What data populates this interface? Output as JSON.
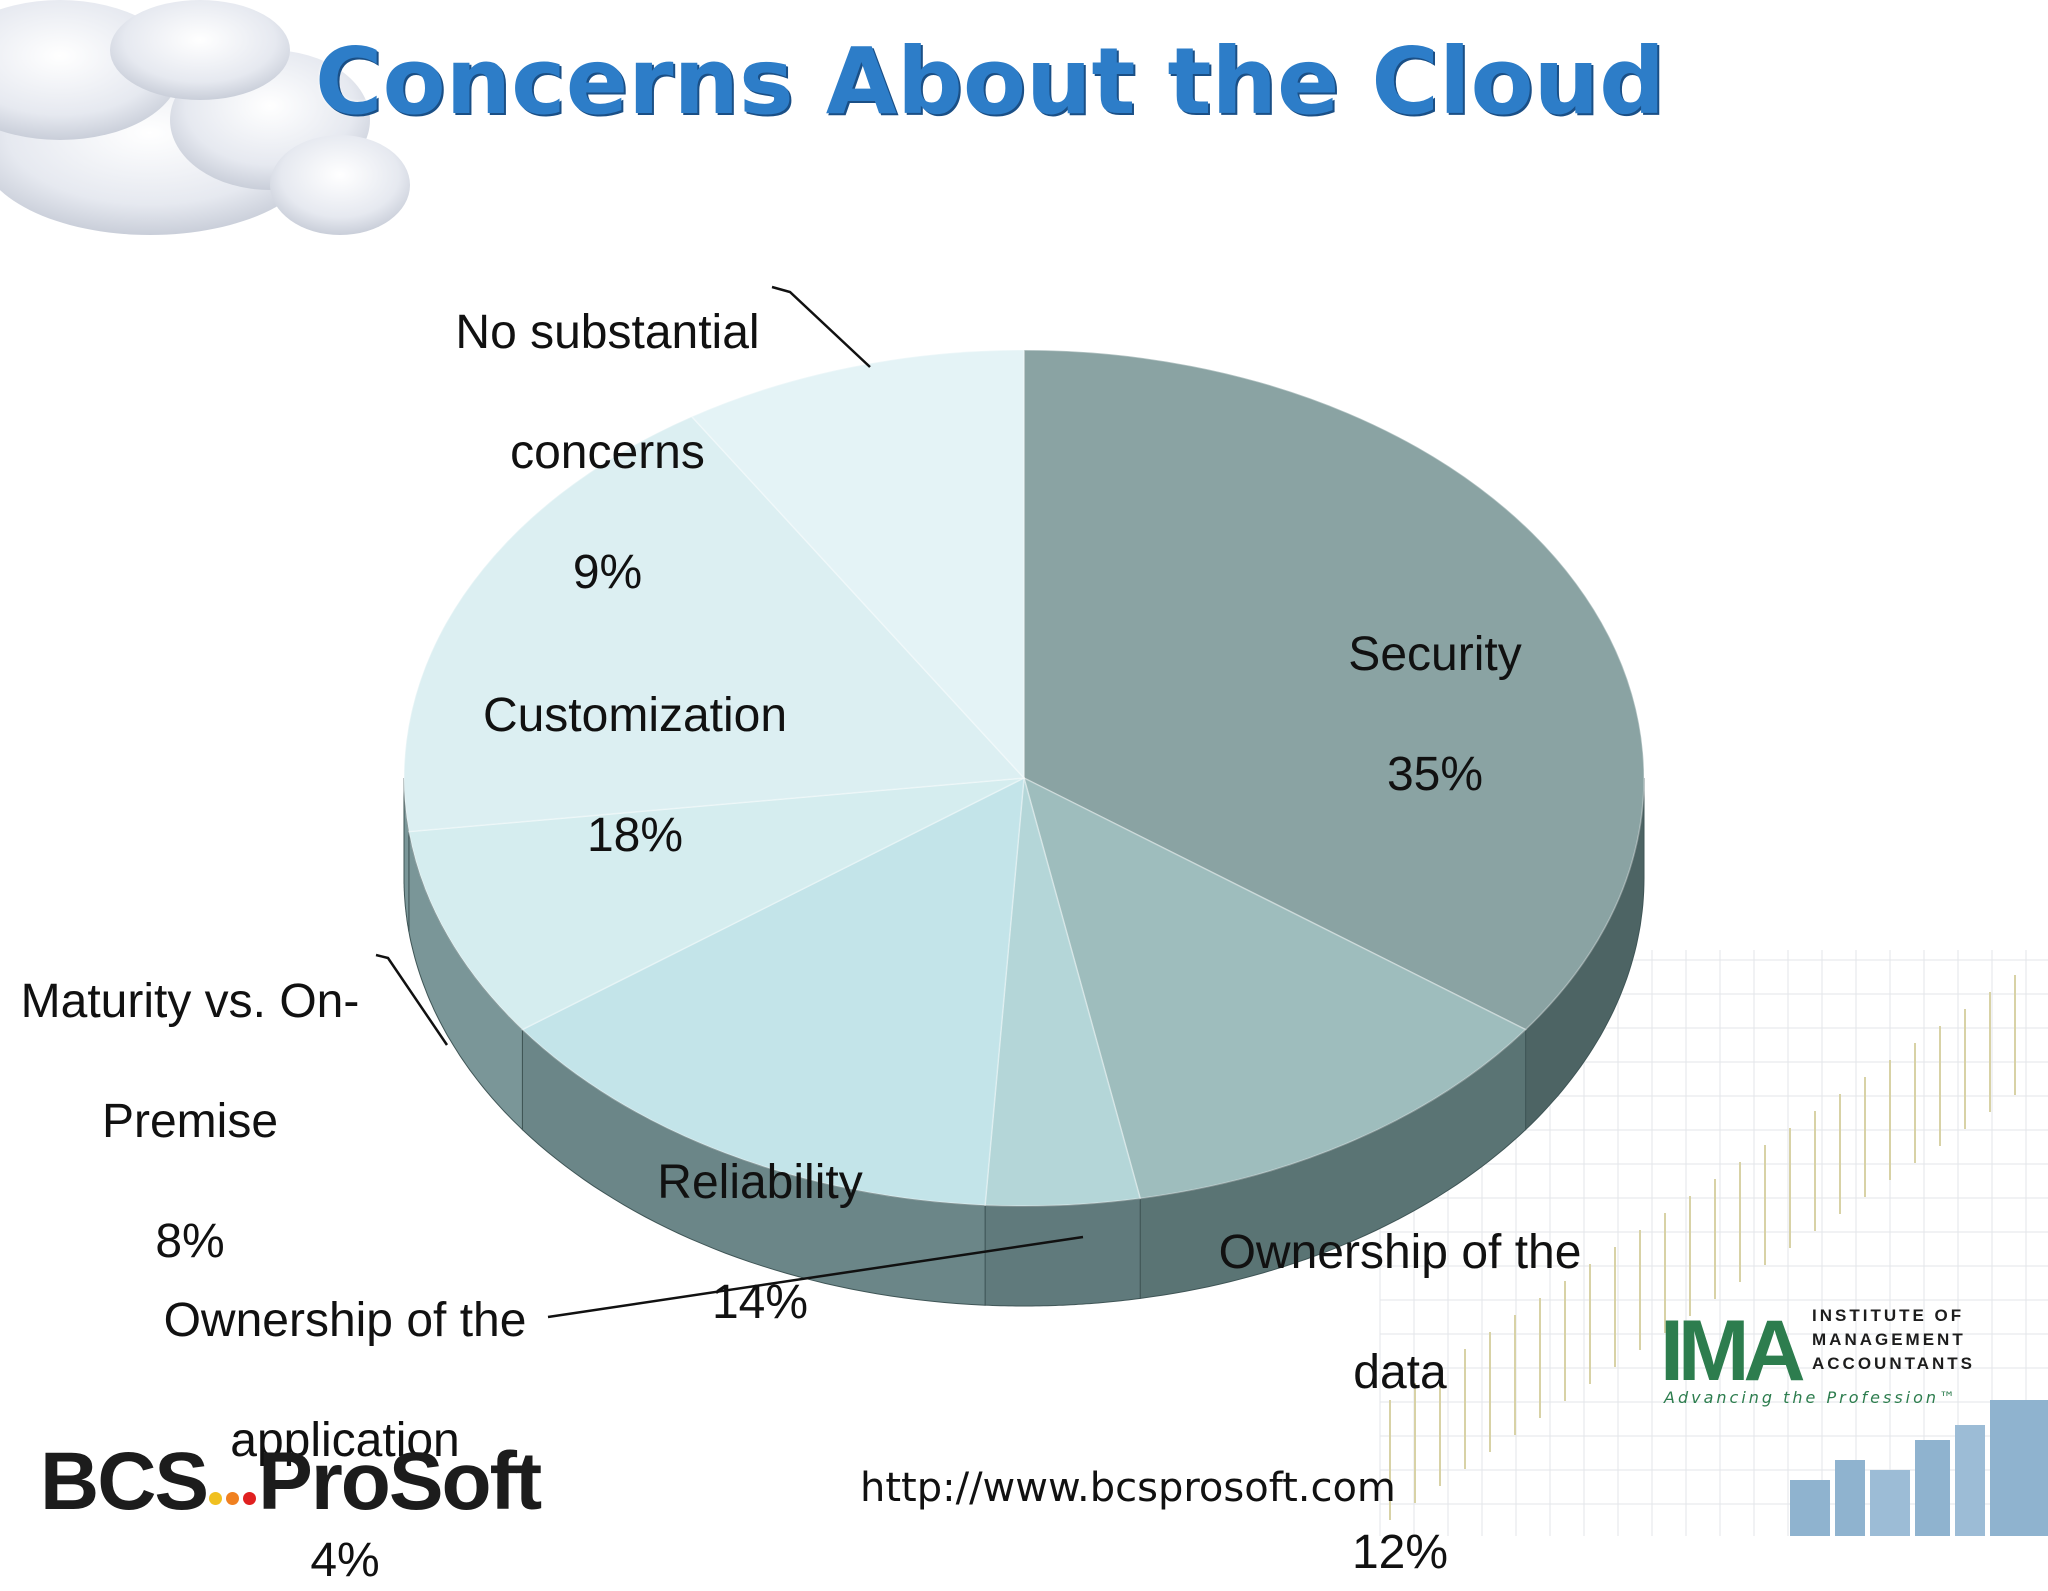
{
  "slide": {
    "title": "Concerns About the Cloud",
    "url": "http://www.bcsprosoft.com",
    "logo_text": {
      "bcs_part1": "BCS",
      "bcs_part2": "ProSoft"
    },
    "ima_logo": {
      "mark": "IMA",
      "line1": "INSTITUTE OF",
      "line2": "MANAGEMENT",
      "line3": "ACCOUNTANTS",
      "tagline": "Advancing the Profession™"
    }
  },
  "chart_data": {
    "type": "pie",
    "title": "Concerns About the Cloud",
    "style": "3d",
    "data_labels": "category name and percentage",
    "slices": [
      {
        "label": "Security",
        "value": 35,
        "display": "35%",
        "color": "#8aa3a3"
      },
      {
        "label": "Ownership of the data",
        "value": 12,
        "display": "12%",
        "color": "#9ebdbd"
      },
      {
        "label": "Ownership of the application",
        "value": 4,
        "display": "4%",
        "color": "#b4d6d8"
      },
      {
        "label": "Reliability",
        "value": 14,
        "display": "14%",
        "color": "#c3e4e9"
      },
      {
        "label": "Maturity vs. On-Premise",
        "value": 8,
        "display": "8%",
        "color": "#d5edef"
      },
      {
        "label": "Customization",
        "value": 18,
        "display": "18%",
        "color": "#dceff2"
      },
      {
        "label": "No substantial concerns",
        "value": 9,
        "display": "9%",
        "color": "#e4f3f6"
      }
    ],
    "side_colors": [
      "#4d6464",
      "#5a7474",
      "#607a7c",
      "#6b8688",
      "#7a9698"
    ]
  }
}
